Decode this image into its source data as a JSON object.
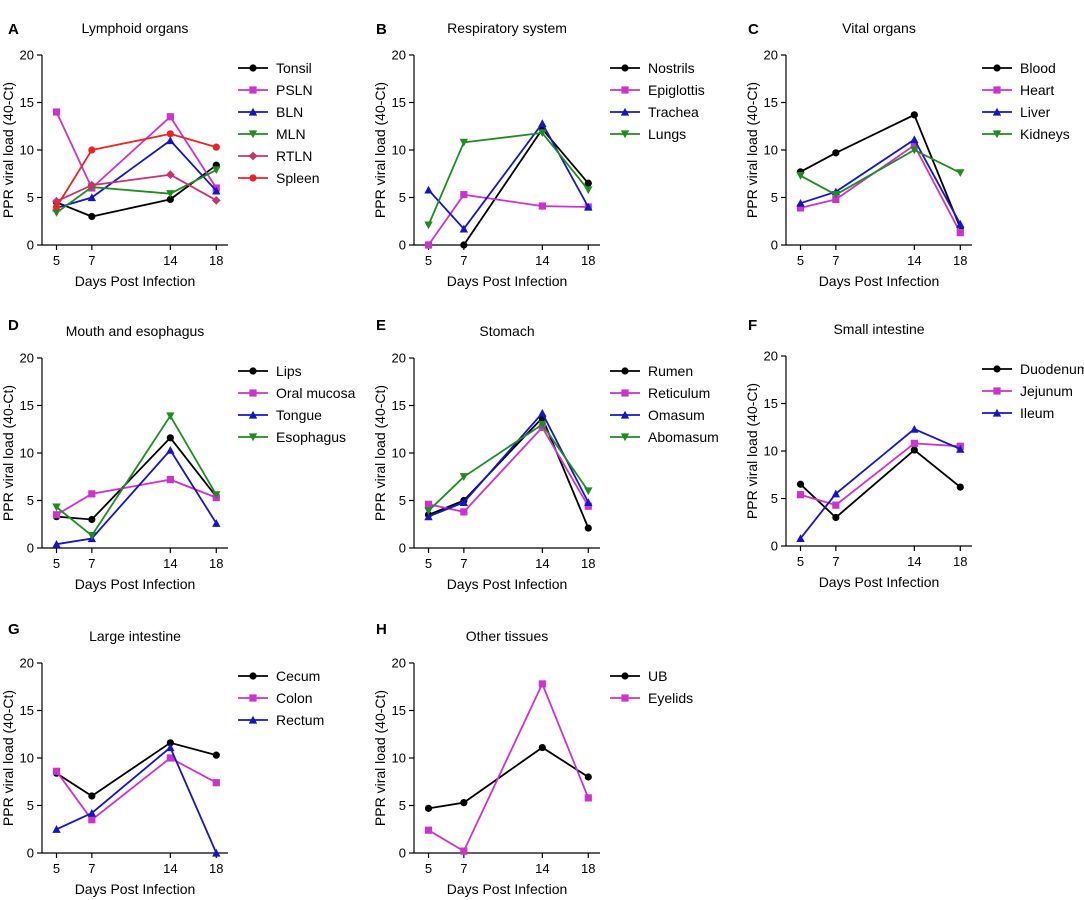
{
  "chart_data": [
    {
      "panel": "A",
      "type": "line",
      "title": "Lymphoid organs",
      "xlabel": "Days Post Infection",
      "ylabel": "PPR viral load (40-Ct)",
      "x": [
        5,
        7,
        14,
        18
      ],
      "ylim": [
        0,
        20
      ],
      "yticks": [
        0,
        5,
        10,
        15,
        20
      ],
      "series": [
        {
          "name": "Tonsil",
          "color": "#000000",
          "marker": "circle",
          "values": [
            4.5,
            3.0,
            4.8,
            8.4
          ]
        },
        {
          "name": "PSLN",
          "color": "#cc33cc",
          "marker": "square",
          "values": [
            14.0,
            6.0,
            13.5,
            6.0
          ]
        },
        {
          "name": "BLN",
          "color": "#1515c8",
          "marker": "triangle-up",
          "values": [
            3.9,
            5.0,
            11.0,
            5.7
          ]
        },
        {
          "name": "MLN",
          "color": "#1e8c1e",
          "marker": "triangle-down",
          "values": [
            3.4,
            6.1,
            5.4,
            7.9
          ]
        },
        {
          "name": "RTLN",
          "color": "#c8336e",
          "marker": "diamond",
          "values": [
            4.6,
            6.3,
            7.4,
            4.7
          ]
        },
        {
          "name": "Spleen",
          "color": "#ee2222",
          "marker": "circle",
          "values": [
            4.0,
            10.0,
            11.7,
            10.3
          ]
        }
      ]
    },
    {
      "panel": "B",
      "type": "line",
      "title": "Respiratory system",
      "xlabel": "Days Post Infection",
      "ylabel": "PPR viral load (40-Ct)",
      "x": [
        5,
        7,
        14,
        18
      ],
      "ylim": [
        0,
        20
      ],
      "yticks": [
        0,
        5,
        10,
        15,
        20
      ],
      "series": [
        {
          "name": "Nostrils",
          "color": "#000000",
          "marker": "circle",
          "values": [
            null,
            0.0,
            12.2,
            6.5
          ]
        },
        {
          "name": "Epiglottis",
          "color": "#cc33cc",
          "marker": "square",
          "values": [
            0.0,
            5.3,
            4.1,
            4.0
          ]
        },
        {
          "name": "Trachea",
          "color": "#1515c8",
          "marker": "triangle-up",
          "values": [
            5.8,
            1.7,
            12.8,
            4.0
          ]
        },
        {
          "name": "Lungs",
          "color": "#1e8c1e",
          "marker": "triangle-down",
          "values": [
            2.1,
            10.8,
            11.8,
            5.8
          ]
        }
      ]
    },
    {
      "panel": "C",
      "type": "line",
      "title": "Vital organs",
      "xlabel": "Days Post Infection",
      "ylabel": "PPR viral load (40-Ct)",
      "x": [
        5,
        7,
        14,
        18
      ],
      "ylim": [
        0,
        20
      ],
      "yticks": [
        0,
        5,
        10,
        15,
        20
      ],
      "series": [
        {
          "name": "Blood",
          "color": "#000000",
          "marker": "circle",
          "values": [
            7.7,
            9.7,
            13.7,
            1.8
          ]
        },
        {
          "name": "Heart",
          "color": "#cc33cc",
          "marker": "square",
          "values": [
            3.9,
            4.8,
            10.5,
            1.3
          ]
        },
        {
          "name": "Liver",
          "color": "#1515c8",
          "marker": "triangle-up",
          "values": [
            4.4,
            5.6,
            11.1,
            2.2
          ]
        },
        {
          "name": "Kidneys",
          "color": "#1e8c1e",
          "marker": "triangle-down",
          "values": [
            7.3,
            5.3,
            10.0,
            7.6
          ]
        }
      ]
    },
    {
      "panel": "D",
      "type": "line",
      "title": "Mouth and esophagus",
      "xlabel": "Days Post Infection",
      "ylabel": "PPR viral load (40-Ct)",
      "x": [
        5,
        7,
        14,
        18
      ],
      "ylim": [
        0,
        20
      ],
      "yticks": [
        0,
        5,
        10,
        15,
        20
      ],
      "series": [
        {
          "name": "Lips",
          "color": "#000000",
          "marker": "circle",
          "values": [
            3.3,
            3.0,
            11.6,
            5.4
          ]
        },
        {
          "name": "Oral mucosa",
          "color": "#cc33cc",
          "marker": "square",
          "values": [
            3.5,
            5.7,
            7.2,
            5.3
          ]
        },
        {
          "name": "Tongue",
          "color": "#1515c8",
          "marker": "triangle-up",
          "values": [
            0.4,
            1.0,
            10.3,
            2.6
          ]
        },
        {
          "name": "Esophagus",
          "color": "#1e8c1e",
          "marker": "triangle-down",
          "values": [
            4.3,
            1.3,
            13.9,
            5.6
          ]
        }
      ]
    },
    {
      "panel": "E",
      "type": "line",
      "title": "Stomach",
      "xlabel": "Days Post Infection",
      "ylabel": "PPR viral load (40-Ct)",
      "x": [
        5,
        7,
        14,
        18
      ],
      "ylim": [
        0,
        20
      ],
      "yticks": [
        0,
        5,
        10,
        15,
        20
      ],
      "series": [
        {
          "name": "Rumen",
          "color": "#000000",
          "marker": "circle",
          "values": [
            3.5,
            5.0,
            13.7,
            2.1
          ]
        },
        {
          "name": "Reticulum",
          "color": "#cc33cc",
          "marker": "square",
          "values": [
            4.6,
            3.8,
            12.7,
            4.4
          ]
        },
        {
          "name": "Omasum",
          "color": "#1515c8",
          "marker": "triangle-up",
          "values": [
            3.3,
            4.8,
            14.2,
            4.8
          ]
        },
        {
          "name": "Abomasum",
          "color": "#1e8c1e",
          "marker": "triangle-down",
          "values": [
            3.9,
            7.5,
            13.0,
            6.0
          ]
        }
      ]
    },
    {
      "panel": "F",
      "type": "line",
      "title": "Small intestine",
      "xlabel": "Days Post Infection",
      "ylabel": "PPR viral load (40-Ct)",
      "x": [
        5,
        7,
        14,
        18
      ],
      "ylim": [
        0,
        20
      ],
      "yticks": [
        0,
        5,
        10,
        15,
        20
      ],
      "series": [
        {
          "name": "Duodenum",
          "color": "#000000",
          "marker": "circle",
          "values": [
            6.5,
            3.0,
            10.1,
            6.2
          ]
        },
        {
          "name": "Jejunum",
          "color": "#cc33cc",
          "marker": "square",
          "values": [
            5.4,
            4.3,
            10.8,
            10.5
          ]
        },
        {
          "name": "Ileum",
          "color": "#1515c8",
          "marker": "triangle-up",
          "values": [
            0.8,
            5.5,
            12.3,
            10.2
          ]
        }
      ]
    },
    {
      "panel": "G",
      "type": "line",
      "title": "Large intestine",
      "xlabel": "Days Post Infection",
      "ylabel": "PPR viral load (40-Ct)",
      "x": [
        5,
        7,
        14,
        18
      ],
      "ylim": [
        0,
        20
      ],
      "yticks": [
        0,
        5,
        10,
        15,
        20
      ],
      "series": [
        {
          "name": "Cecum",
          "color": "#000000",
          "marker": "circle",
          "values": [
            8.4,
            6.0,
            11.6,
            10.3
          ]
        },
        {
          "name": "Colon",
          "color": "#cc33cc",
          "marker": "square",
          "values": [
            8.6,
            3.5,
            10.0,
            7.4
          ]
        },
        {
          "name": "Rectum",
          "color": "#1515c8",
          "marker": "triangle-up",
          "values": [
            2.5,
            4.2,
            11.1,
            0.0
          ]
        }
      ]
    },
    {
      "panel": "H",
      "type": "line",
      "title": "Other tissues",
      "xlabel": "Days Post Infection",
      "ylabel": "PPR viral load (40-Ct)",
      "x": [
        5,
        7,
        14,
        18
      ],
      "ylim": [
        0,
        20
      ],
      "yticks": [
        0,
        5,
        10,
        15,
        20
      ],
      "series": [
        {
          "name": "UB",
          "color": "#000000",
          "marker": "circle",
          "values": [
            4.7,
            5.3,
            11.1,
            8.0
          ]
        },
        {
          "name": "Eyelids",
          "color": "#cc33cc",
          "marker": "square",
          "values": [
            2.4,
            0.2,
            17.8,
            5.8
          ]
        }
      ]
    }
  ]
}
